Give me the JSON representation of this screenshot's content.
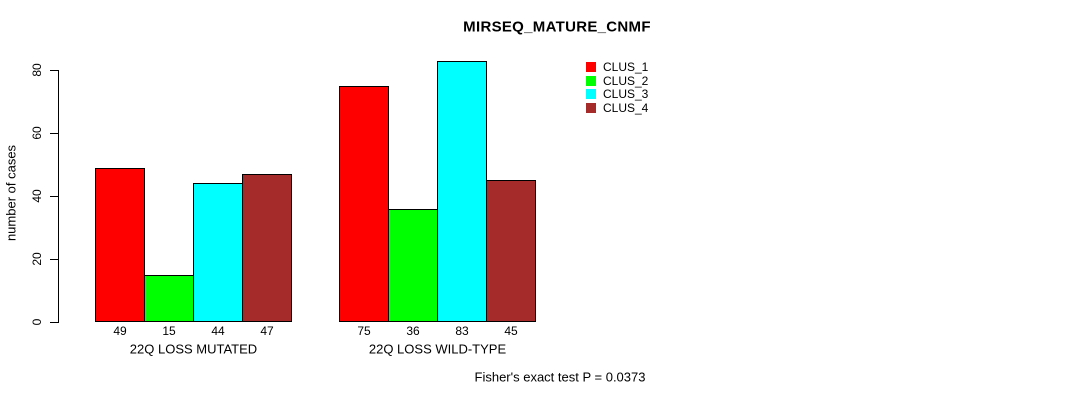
{
  "chart_data": {
    "type": "bar",
    "title": "MIRSEQ_MATURE_CNMF",
    "ylabel": "number of cases",
    "xlabel": "",
    "ylim": [
      0,
      80
    ],
    "yticks": [
      0,
      20,
      40,
      60,
      80
    ],
    "grid": false,
    "legend_position": "top-right",
    "categories": [
      "22Q LOSS MUTATED",
      "22Q LOSS WILD-TYPE"
    ],
    "series": [
      {
        "name": "CLUS_1",
        "color": "#FF0000",
        "values": [
          49,
          75
        ]
      },
      {
        "name": "CLUS_2",
        "color": "#00FF00",
        "values": [
          15,
          36
        ]
      },
      {
        "name": "CLUS_3",
        "color": "#00FFFF",
        "values": [
          44,
          83
        ]
      },
      {
        "name": "CLUS_4",
        "color": "#A52A2A",
        "values": [
          47,
          45
        ]
      }
    ],
    "bar_value_labels": [
      [
        49,
        15,
        44,
        47
      ],
      [
        75,
        36,
        83,
        45
      ]
    ],
    "annotation": "Fisher's exact test P = 0.0373"
  }
}
